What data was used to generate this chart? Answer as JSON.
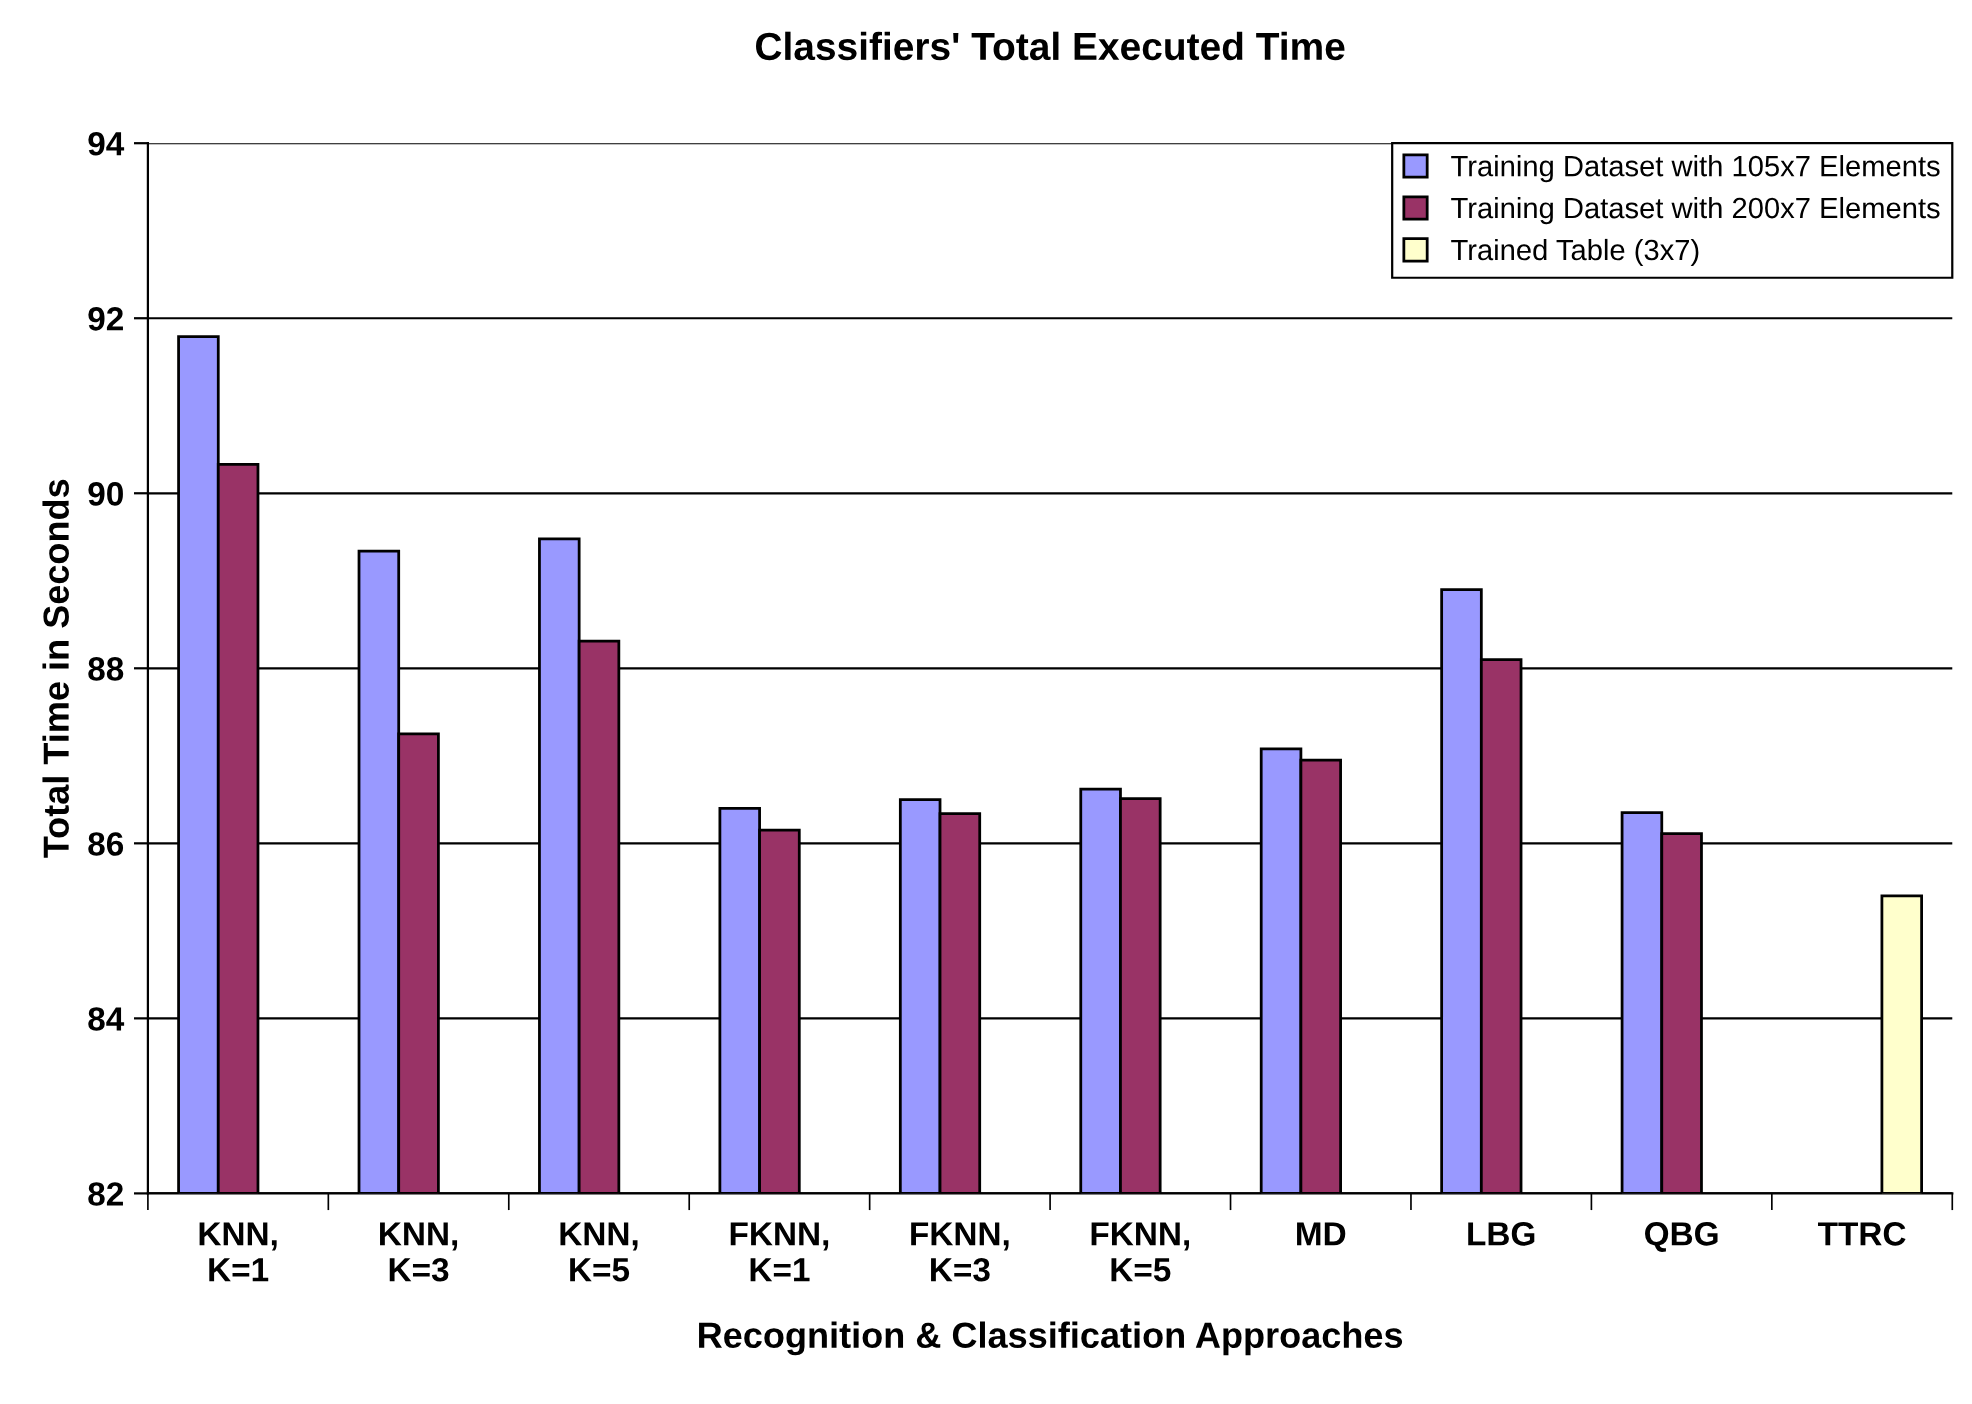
{
  "chart_data": {
    "type": "bar",
    "title": "Classifiers' Total Executed Time",
    "xlabel": "Recognition & Classification Approaches",
    "ylabel": "Total Time in Seconds",
    "categories": [
      "KNN,\nK=1",
      "KNN,\nK=3",
      "KNN,\nK=5",
      "FKNN,\nK=1",
      "FKNN,\nK=3",
      "FKNN,\nK=5",
      "MD",
      "LBG",
      "QBG",
      "TTRC"
    ],
    "series": [
      {
        "name": "Training Dataset with 105x7 Elements",
        "color": "#9999ff",
        "values": [
          91.79,
          89.34,
          89.48,
          86.4,
          86.5,
          86.62,
          87.08,
          88.9,
          86.35,
          null
        ]
      },
      {
        "name": "Training Dataset with 200x7 Elements",
        "color": "#993366",
        "values": [
          90.33,
          87.25,
          88.31,
          86.15,
          86.34,
          86.51,
          86.95,
          88.1,
          86.11,
          null
        ]
      },
      {
        "name": "Trained Table (3x7)",
        "color": "#ffffcc",
        "values": [
          null,
          null,
          null,
          null,
          null,
          null,
          null,
          null,
          null,
          85.4
        ]
      }
    ],
    "ylim": [
      82,
      94
    ],
    "yticks": [
      82,
      84,
      86,
      88,
      90,
      92,
      94
    ],
    "grid": "y",
    "legend": "top right"
  }
}
